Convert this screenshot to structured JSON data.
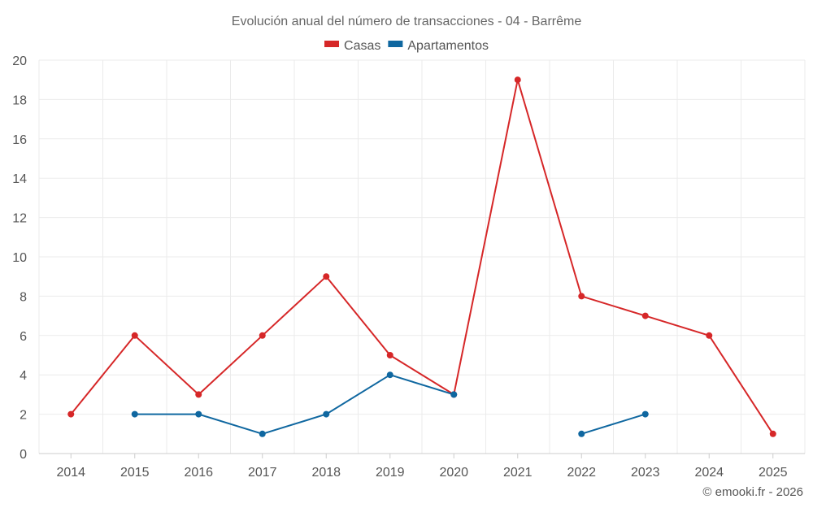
{
  "chart_data": {
    "type": "line",
    "title": "Evolución anual del número de transacciones - 04 - Barrême",
    "xlabel": "",
    "ylabel": "",
    "categories": [
      "2014",
      "2015",
      "2016",
      "2017",
      "2018",
      "2019",
      "2020",
      "2021",
      "2022",
      "2023",
      "2024",
      "2025"
    ],
    "ylim": [
      0,
      20
    ],
    "yticks": [
      0,
      2,
      4,
      6,
      8,
      10,
      12,
      14,
      16,
      18,
      20
    ],
    "grid": true,
    "legend_position": "top-center",
    "series": [
      {
        "name": "Casas",
        "color": "#d62728",
        "values": [
          2,
          6,
          3,
          6,
          9,
          5,
          3,
          19,
          8,
          7,
          6,
          1
        ]
      },
      {
        "name": "Apartamentos",
        "color": "#0f67a0",
        "values": [
          null,
          2,
          2,
          1,
          2,
          4,
          3,
          null,
          1,
          2,
          null,
          null
        ]
      }
    ]
  },
  "footer": {
    "credit": "© emooki.fr - 2026"
  }
}
